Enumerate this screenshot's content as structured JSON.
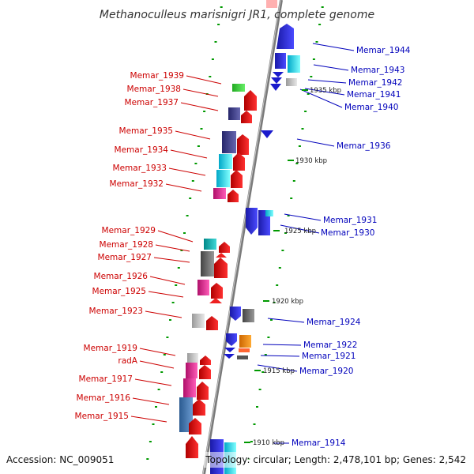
{
  "title": "Methanoculleus marisnigri JR1, complete genome",
  "footer": {
    "accession": "Accession: NC_009051",
    "topology": "Topology: circular; Length: 2,478,101 bp; Genes: 2,542"
  },
  "colors": {
    "backbone": "#888888",
    "left_label": "#cc0000",
    "right_label": "#0000bb",
    "tick": "#009900"
  },
  "kbp_ticks": [
    "1935 kbp",
    "1930 kbp",
    "1925 kbp",
    "1920 kbp",
    "1915 kbp",
    "1910 kbp"
  ],
  "left_genes": [
    "Memar_1939",
    "Memar_1938",
    "Memar_1937",
    "Memar_1935",
    "Memar_1934",
    "Memar_1933",
    "Memar_1932",
    "Memar_1929",
    "Memar_1928",
    "Memar_1927",
    "Memar_1926",
    "Memar_1925",
    "Memar_1923",
    "Memar_1919",
    "radA",
    "Memar_1917",
    "Memar_1916",
    "Memar_1915"
  ],
  "right_genes": [
    "Memar_1944",
    "Memar_1943",
    "Memar_1942",
    "Memar_1941",
    "Memar_1940",
    "Memar_1936",
    "Memar_1931",
    "Memar_1930",
    "Memar_1924",
    "Memar_1922",
    "Memar_1921",
    "Memar_1920",
    "Memar_1914"
  ]
}
